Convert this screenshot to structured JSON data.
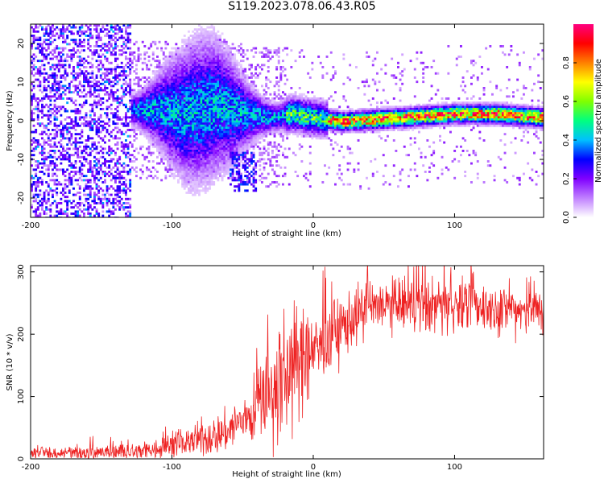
{
  "title": "S119.2023.078.06.43.R05",
  "chart_data": [
    {
      "type": "heatmap",
      "xlabel": "Height of straight line (km)",
      "ylabel": "Frequency (Hz)",
      "xlim": [
        -200,
        163
      ],
      "ylim": [
        -25,
        25
      ],
      "xticks": [
        -200,
        -100,
        0,
        100
      ],
      "yticks": [
        -20,
        -10,
        0,
        10,
        20
      ],
      "colorbar": {
        "label": "Normalized spectral amplitude",
        "range": [
          0,
          1
        ],
        "ticks": [
          "0.0",
          "0.2",
          "0.4",
          "0.6",
          "0.8"
        ],
        "colors": [
          "#ffffff",
          "#c080ff",
          "#8000ff",
          "#0000ff",
          "#00c0ff",
          "#00ff80",
          "#80ff00",
          "#ffff00",
          "#ff8000",
          "#ff0000",
          "#ff0080"
        ]
      },
      "ridge": {
        "description_points_x": [
          -130,
          -110,
          -90,
          -70,
          -50,
          -30,
          -15,
          0,
          20,
          40,
          60,
          80,
          100,
          130,
          163
        ],
        "freq_hz": [
          3,
          3,
          2,
          4,
          2,
          1,
          2,
          1,
          0,
          0.5,
          1,
          1.5,
          2,
          2,
          1
        ]
      }
    },
    {
      "type": "line",
      "xlabel": "Height of straight line (km)",
      "ylabel": "SNR (10 * v/v)",
      "xlim": [
        -200,
        163
      ],
      "ylim": [
        0,
        310
      ],
      "xticks": [
        -200,
        -100,
        0,
        100
      ],
      "yticks": [
        0,
        100,
        200,
        300
      ],
      "color": "#ee2222",
      "trend_x": [
        -200,
        -150,
        -120,
        -100,
        -80,
        -60,
        -45,
        -30,
        -20,
        -10,
        0,
        10,
        20,
        30,
        50,
        80,
        100,
        130,
        163
      ],
      "trend_y": [
        8,
        9,
        12,
        22,
        30,
        45,
        70,
        100,
        130,
        150,
        170,
        190,
        210,
        230,
        245,
        245,
        245,
        240,
        240
      ],
      "noise_x": [
        -200,
        -100,
        -50,
        -20,
        0,
        30,
        163
      ],
      "noise_amp": [
        5,
        12,
        25,
        70,
        40,
        30,
        25
      ]
    }
  ]
}
